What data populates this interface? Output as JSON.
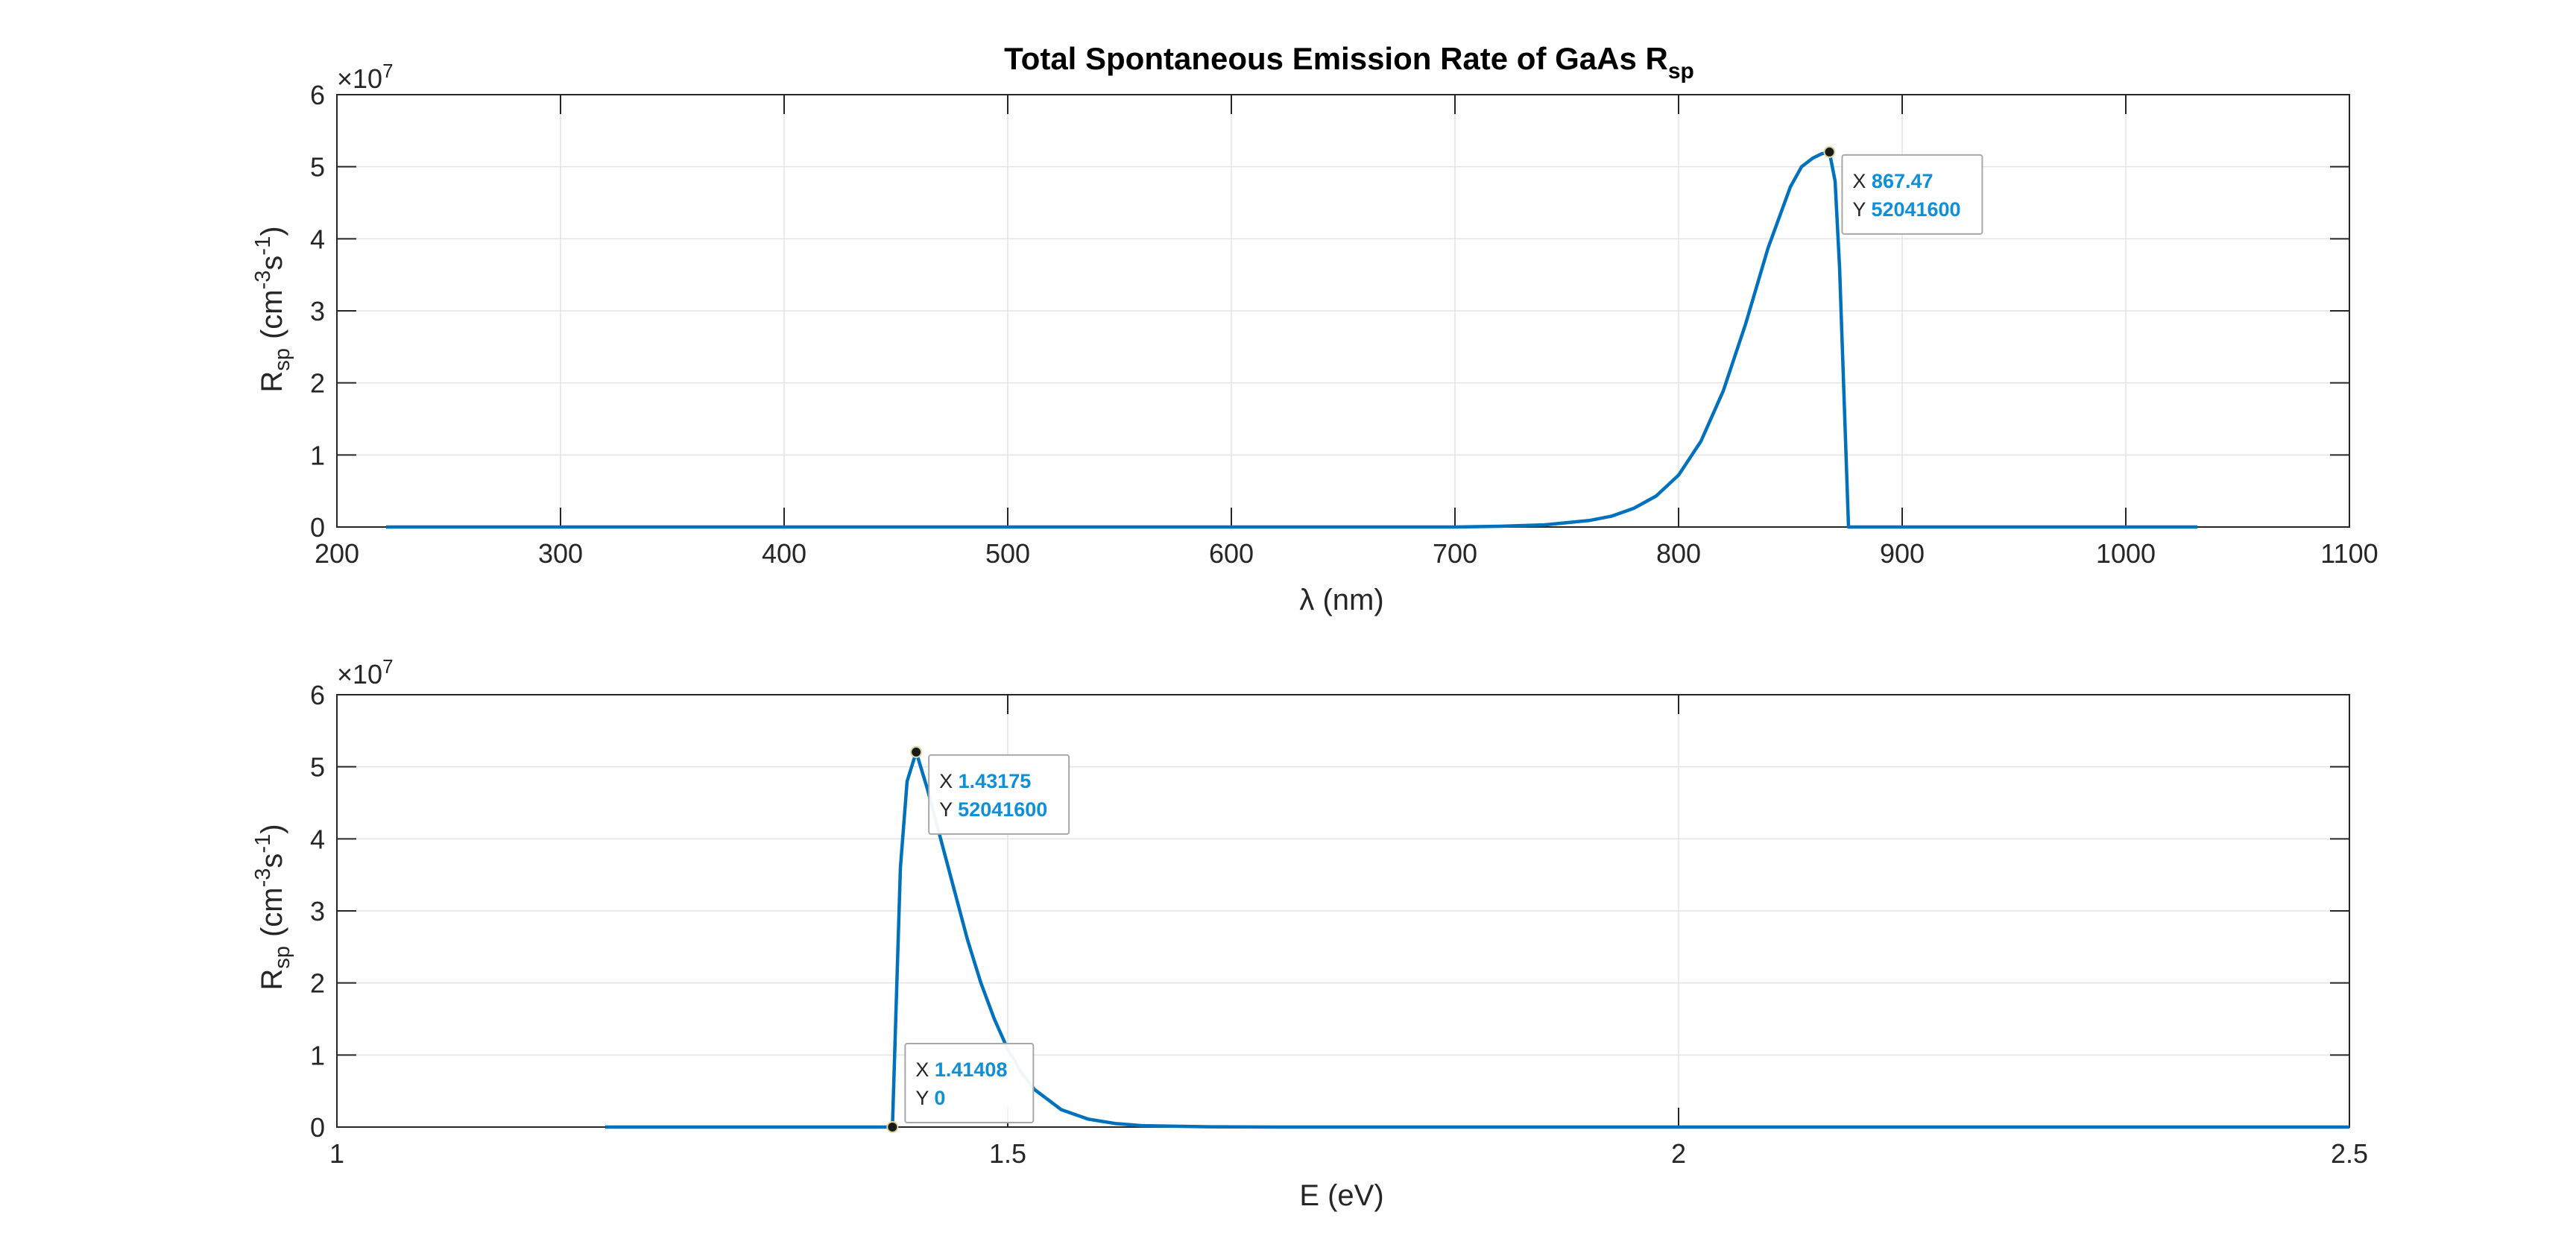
{
  "colors": {
    "line": "#0072BD",
    "datatip_value": "#0e8fd8",
    "grid": "#e3e3e3",
    "axis": "#262626"
  },
  "chart_data": [
    {
      "type": "line",
      "title": "Total Spontaneous Emission Rate of GaAs R",
      "title_sub": "sp",
      "xlabel": "λ (nm)",
      "ylabel_main": "R",
      "ylabel_sub": "sp",
      "ylabel_units": "(cm",
      "ylabel_exp1": "-3",
      "ylabel_mid": "s",
      "ylabel_exp2": "-1",
      "ylabel_close": ")",
      "y_exponent_base": "×10",
      "y_exponent_power": "7",
      "xlim": [
        200,
        1100
      ],
      "ylim": [
        0,
        6
      ],
      "y_multiplier": 10000000,
      "xticks": [
        200,
        300,
        400,
        500,
        600,
        700,
        800,
        900,
        1000,
        1100
      ],
      "yticks": [
        0,
        1,
        2,
        3,
        4,
        5,
        6
      ],
      "grid": true,
      "series": [
        {
          "x": [
            222,
            700,
            720,
            740,
            760,
            770,
            780,
            790,
            800,
            810,
            820,
            830,
            840,
            850,
            855,
            860,
            864,
            867.47,
            870,
            872,
            876,
            900,
            1000,
            1032
          ],
          "y": [
            0,
            0,
            0.01,
            0.03,
            0.09,
            0.15,
            0.26,
            0.43,
            0.72,
            1.19,
            1.89,
            2.82,
            3.87,
            4.72,
            5.0,
            5.12,
            5.18,
            5.204,
            4.8,
            3.6,
            0,
            0,
            0,
            0
          ]
        }
      ],
      "datatips": [
        {
          "x_label": "X",
          "x_value": "867.47",
          "y_label": "Y",
          "y_value": "52041600",
          "x": 867.47,
          "y": 5.20416
        }
      ]
    },
    {
      "type": "line",
      "title": "",
      "xlabel": "E (eV)",
      "ylabel_main": "R",
      "ylabel_sub": "sp",
      "ylabel_units": "(cm",
      "ylabel_exp1": "-3",
      "ylabel_mid": "s",
      "ylabel_exp2": "-1",
      "ylabel_close": ")",
      "y_exponent_base": "×10",
      "y_exponent_power": "7",
      "xlim": [
        1,
        2.5
      ],
      "ylim": [
        0,
        6
      ],
      "y_multiplier": 10000000,
      "xticks": [
        1,
        1.5,
        2,
        2.5
      ],
      "ytick_labels_x": [
        "1",
        "1.5",
        "2",
        "2.5"
      ],
      "yticks": [
        0,
        1,
        2,
        3,
        4,
        5,
        6
      ],
      "grid": true,
      "series": [
        {
          "x": [
            1.2,
            1.41408,
            1.42,
            1.425,
            1.43175,
            1.44,
            1.45,
            1.46,
            1.47,
            1.48,
            1.49,
            1.5,
            1.51,
            1.52,
            1.54,
            1.56,
            1.58,
            1.6,
            1.65,
            1.7,
            2.0,
            2.5
          ],
          "y": [
            0,
            0,
            3.6,
            4.8,
            5.204,
            4.7,
            4.0,
            3.3,
            2.6,
            2.0,
            1.5,
            1.08,
            0.76,
            0.52,
            0.24,
            0.11,
            0.05,
            0.02,
            0.004,
            0,
            0,
            0
          ]
        }
      ],
      "datatips": [
        {
          "x_label": "X",
          "x_value": "1.43175",
          "y_label": "Y",
          "y_value": "52041600",
          "x": 1.43175,
          "y": 5.20416
        },
        {
          "x_label": "X",
          "x_value": "1.41408",
          "y_label": "Y",
          "y_value": "0",
          "x": 1.41408,
          "y": 0
        }
      ]
    }
  ]
}
